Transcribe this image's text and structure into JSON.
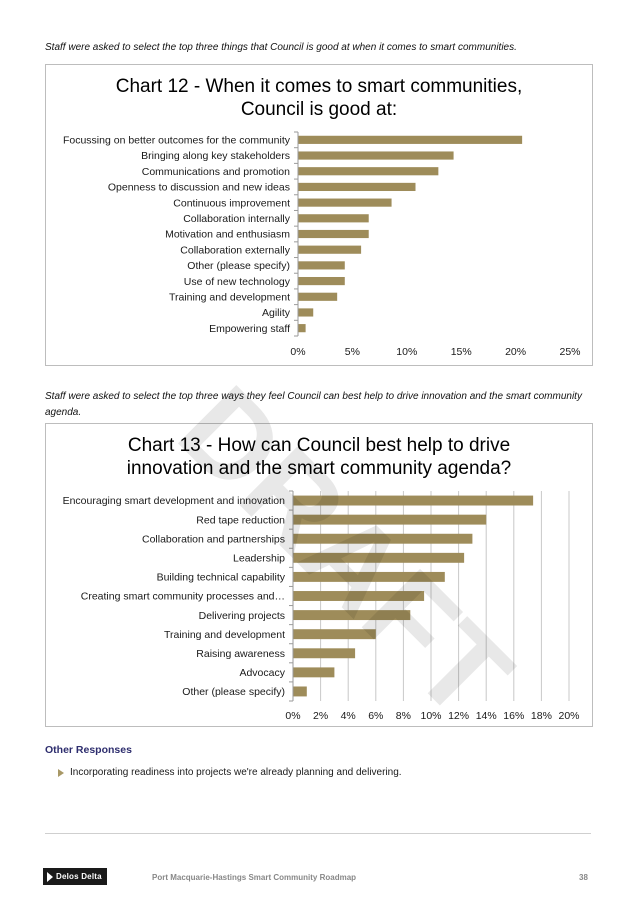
{
  "colors": {
    "bar": "#9e8c5a",
    "axis": "#9a9a9a",
    "heading": "#2e2e6e",
    "bullet": "#a89866"
  },
  "intro12": "Staff were asked to select the top three things that Council is good at when it comes to smart communities.",
  "intro13": "Staff were asked to select the top three ways they feel Council can best help to drive innovation and the smart community agenda.",
  "watermark": "DRAFT",
  "other_responses": {
    "heading": "Other Responses",
    "items": [
      "Incorporating readiness into projects we're already planning and delivering."
    ]
  },
  "footer": {
    "logo": "Delos Delta",
    "logo_icon": "play-triangle-icon",
    "title": "Port Macquarie-Hastings Smart Community Roadmap",
    "page": "38"
  },
  "chart_data": [
    {
      "type": "bar",
      "orientation": "horizontal",
      "title_lines": [
        "Chart 12 - When it comes to smart communities,",
        "Council is good at:"
      ],
      "categories": [
        "Focussing on better outcomes for the community",
        "Bringing along key stakeholders",
        "Communications and promotion",
        "Openness to discussion and new ideas",
        "Continuous improvement",
        "Collaboration internally",
        "Motivation and enthusiasm",
        "Collaboration externally",
        "Other (please specify)",
        "Use of new technology",
        "Training and development",
        "Agility",
        "Empowering staff"
      ],
      "values": [
        20.6,
        14.3,
        12.9,
        10.8,
        8.6,
        6.5,
        6.5,
        5.8,
        4.3,
        4.3,
        3.6,
        1.4,
        0.7
      ],
      "unit": "%",
      "xlim": [
        0,
        25
      ],
      "ticks": [
        0,
        5,
        10,
        15,
        20,
        25
      ],
      "tick_labels": [
        "0%",
        "5%",
        "10%",
        "15%",
        "20%",
        "25%"
      ],
      "grid": false
    },
    {
      "type": "bar",
      "orientation": "horizontal",
      "title_lines": [
        "Chart 13 - How can Council best help to drive",
        "innovation and the smart community agenda?"
      ],
      "categories": [
        "Encouraging smart development and innovation",
        "Red tape reduction",
        "Collaboration and partnerships",
        "Leadership",
        "Building technical capability",
        "Creating smart community processes and…",
        "Delivering projects",
        "Training and development",
        "Raising awareness",
        "Advocacy",
        "Other (please specify)"
      ],
      "values": [
        17.4,
        14.0,
        13.0,
        12.4,
        11.0,
        9.5,
        8.5,
        6.0,
        4.5,
        3.0,
        1.0
      ],
      "unit": "%",
      "xlim": [
        0,
        20
      ],
      "ticks": [
        0,
        2,
        4,
        6,
        8,
        10,
        12,
        14,
        16,
        18,
        20
      ],
      "tick_labels": [
        "0%",
        "2%",
        "4%",
        "6%",
        "8%",
        "10%",
        "12%",
        "14%",
        "16%",
        "18%",
        "20%"
      ],
      "grid": true
    }
  ]
}
